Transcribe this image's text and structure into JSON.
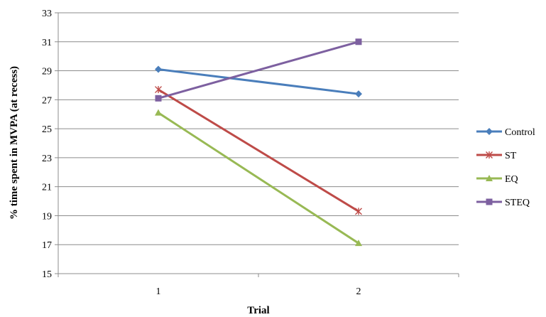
{
  "chart_data": {
    "type": "line",
    "title": "",
    "xlabel": "Trial",
    "ylabel": "% time spent in MVPA  (at recess)",
    "categories": [
      "1",
      "2"
    ],
    "ylim": [
      15,
      33
    ],
    "yticks": [
      "15",
      "17",
      "19",
      "21",
      "23",
      "25",
      "27",
      "29",
      "31",
      "33"
    ],
    "grid": "horizontal",
    "legend_position": "right",
    "series": [
      {
        "name": "Control",
        "values": [
          29.1,
          27.4
        ],
        "color": "#4a7ebb",
        "marker": "diamond"
      },
      {
        "name": "ST",
        "values": [
          27.7,
          19.3
        ],
        "color": "#be4b48",
        "marker": "star"
      },
      {
        "name": "EQ",
        "values": [
          26.1,
          17.1
        ],
        "color": "#98b954",
        "marker": "triangle"
      },
      {
        "name": "STEQ",
        "values": [
          27.1,
          31.0
        ],
        "color": "#7d60a0",
        "marker": "square"
      }
    ]
  }
}
